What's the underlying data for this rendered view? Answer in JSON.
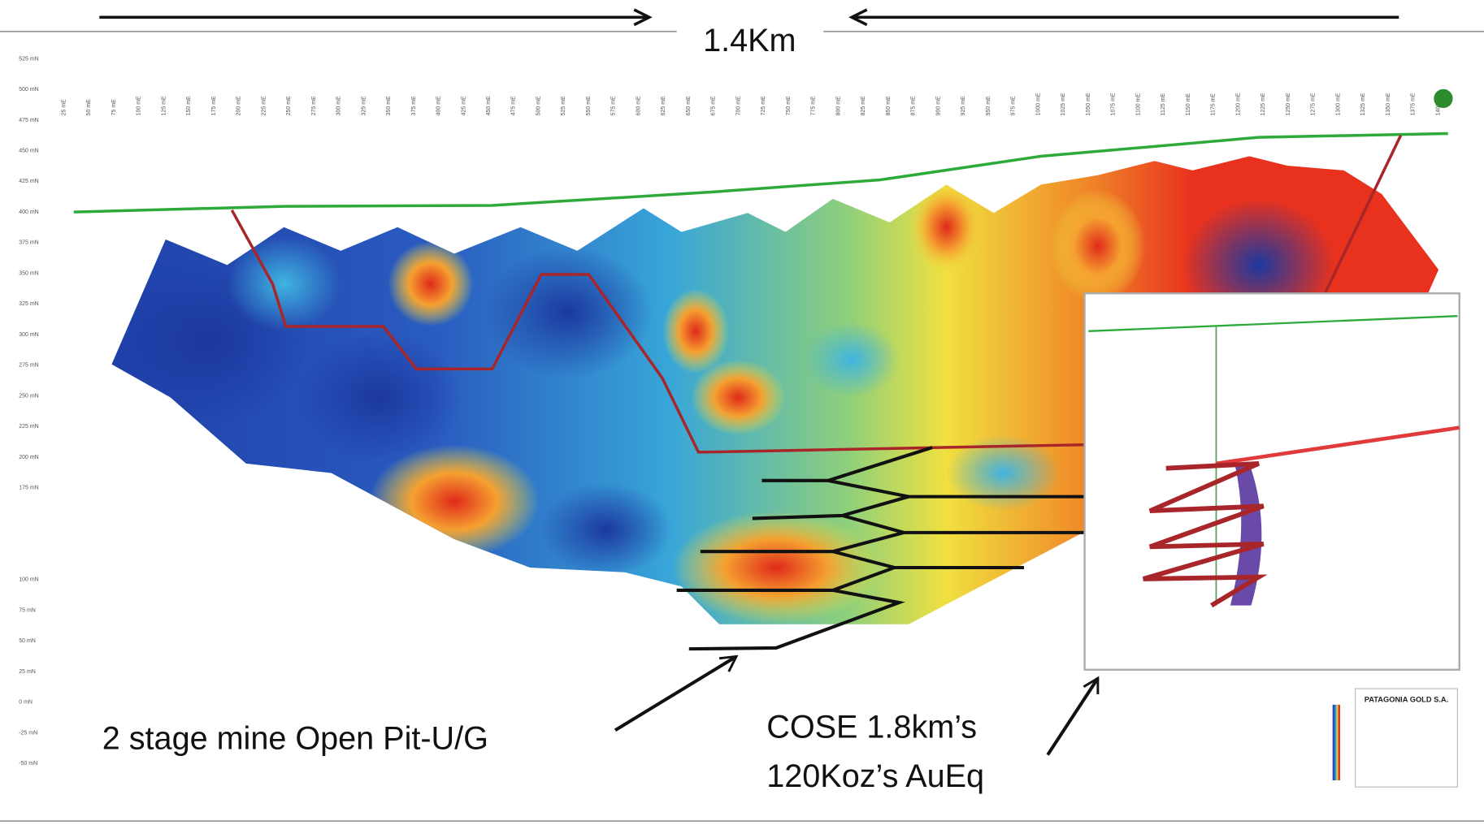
{
  "header": {
    "distance": "1.4Km"
  },
  "section": {
    "y_labels": [
      "525 mN",
      "500 mN",
      "475 mN",
      "450 mN",
      "425 mN",
      "400 mN",
      "375 mN",
      "350 mN",
      "325 mN",
      "300 mN",
      "275 mN",
      "250 mN",
      "225 mN",
      "200 mN",
      "175 mN",
      "100 mN",
      "75 mN",
      "50 mN",
      "25 mN",
      "0 mN",
      "-25 mN",
      "-50 mN"
    ],
    "x_labels": [
      "25 mE",
      "50 mE",
      "75 mE",
      "100 mE",
      "125 mE",
      "150 mE",
      "175 mE",
      "200 mE",
      "225 mE",
      "250 mE",
      "275 mE",
      "300 mE",
      "325 mE",
      "350 mE",
      "375 mE",
      "400 mE",
      "425 mE",
      "450 mE",
      "475 mE",
      "500 mE",
      "525 mE",
      "550 mE",
      "575 mE",
      "600 mE",
      "625 mE",
      "650 mE",
      "675 mE",
      "700 mE",
      "725 mE",
      "750 mE",
      "775 mE",
      "800 mE",
      "825 mE",
      "850 mE",
      "875 mE",
      "900 mE",
      "925 mE",
      "950 mE",
      "975 mE",
      "1000 mE",
      "1025 mE",
      "1050 mE",
      "1075 mE",
      "1100 mE",
      "1125 mE",
      "1150 mE",
      "1175 mE",
      "1200 mE",
      "1225 mE",
      "1250 mE",
      "1275 mE",
      "1300 mE",
      "1325 mE",
      "1350 mE",
      "1375 mE",
      "1400 mE"
    ]
  },
  "annotations": {
    "mine": "2 stage mine Open Pit-U/G",
    "cose_line1": "COSE 1.8km’s",
    "cose_line2": "120Koz’s AuEq"
  },
  "legend": {
    "company": "PATAGONIA GOLD S.A."
  }
}
